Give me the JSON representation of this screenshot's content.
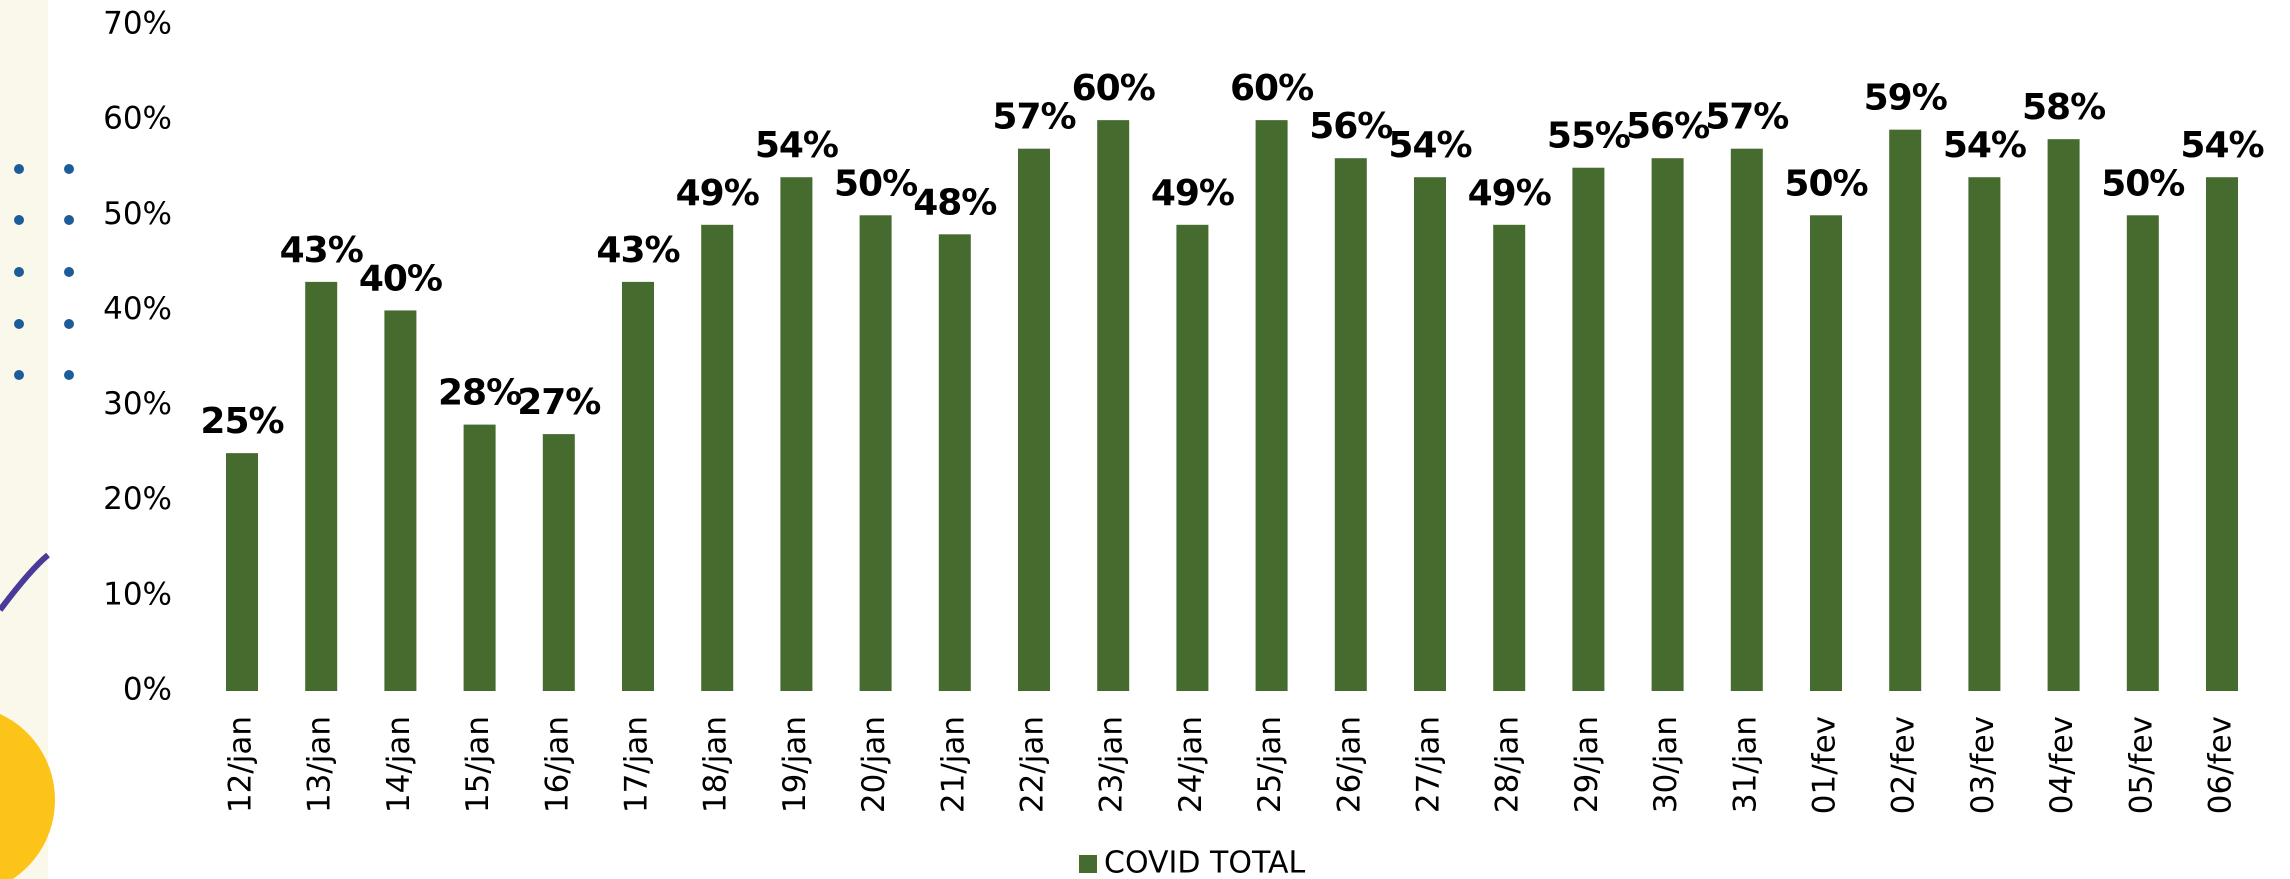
{
  "chart_data": {
    "type": "bar",
    "categories": [
      "12/jan",
      "13/jan",
      "14/jan",
      "15/jan",
      "16/jan",
      "17/jan",
      "18/jan",
      "19/jan",
      "20/jan",
      "21/jan",
      "22/jan",
      "23/jan",
      "24/jan",
      "25/jan",
      "26/jan",
      "27/jan",
      "28/jan",
      "29/jan",
      "30/jan",
      "31/jan",
      "01/fev",
      "02/fev",
      "03/fev",
      "04/fev",
      "05/fev",
      "06/fev"
    ],
    "series": [
      {
        "name": "COVID TOTAL",
        "color": "#456b2f",
        "values": [
          25,
          43,
          40,
          28,
          27,
          43,
          49,
          54,
          50,
          48,
          57,
          60,
          49,
          60,
          56,
          54,
          49,
          55,
          56,
          57,
          50,
          59,
          54,
          58,
          50,
          54
        ],
        "value_labels": [
          "25%",
          "43%",
          "40%",
          "28%",
          "27%",
          "43%",
          "49%",
          "54%",
          "50%",
          "48%",
          "57%",
          "60%",
          "49%",
          "60%",
          "56%",
          "54%",
          "49%",
          "55%",
          "56%",
          "57%",
          "50%",
          "59%",
          "54%",
          "58%",
          "50%",
          "54%"
        ]
      }
    ],
    "ylim": [
      0,
      70
    ],
    "yticks": [
      {
        "value": 0,
        "label": "0%"
      },
      {
        "value": 10,
        "label": "10%"
      },
      {
        "value": 20,
        "label": "20%"
      },
      {
        "value": 30,
        "label": "30%"
      },
      {
        "value": 40,
        "label": "40%"
      },
      {
        "value": 50,
        "label": "50%"
      },
      {
        "value": 60,
        "label": "60%"
      },
      {
        "value": 70,
        "label": "70%"
      }
    ],
    "grid": false,
    "legend": "bottom"
  }
}
